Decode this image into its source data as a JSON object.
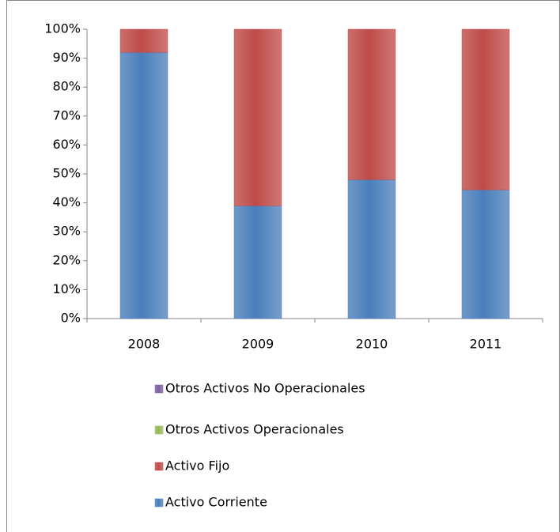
{
  "chart_data": {
    "type": "bar",
    "stacked": true,
    "categories": [
      "2008",
      "2009",
      "2010",
      "2011"
    ],
    "series": [
      {
        "name": "Activo Corriente",
        "color": "#4a7ebb",
        "values": [
          92,
          39,
          48,
          44.5
        ]
      },
      {
        "name": "Activo Fijo",
        "color": "#be4b48",
        "values": [
          8,
          61,
          52,
          55.5
        ]
      },
      {
        "name": "Otros Activos Operacionales",
        "color": "#98b954",
        "values": [
          0,
          0,
          0,
          0
        ]
      },
      {
        "name": "Otros Activos No Operacionales",
        "color": "#7d60a0",
        "values": [
          0,
          0,
          0,
          0
        ]
      }
    ],
    "ylim": [
      0,
      100
    ],
    "yticks": [
      {
        "value": 0,
        "label": "0%"
      },
      {
        "value": 10,
        "label": "10%"
      },
      {
        "value": 20,
        "label": "20%"
      },
      {
        "value": 30,
        "label": "30%"
      },
      {
        "value": 40,
        "label": "40%"
      },
      {
        "value": 50,
        "label": "50%"
      },
      {
        "value": 60,
        "label": "60%"
      },
      {
        "value": 70,
        "label": "70%"
      },
      {
        "value": 80,
        "label": "80%"
      },
      {
        "value": 90,
        "label": "90%"
      },
      {
        "value": 100,
        "label": "100%"
      }
    ],
    "grid": false,
    "legend": "bottom"
  }
}
